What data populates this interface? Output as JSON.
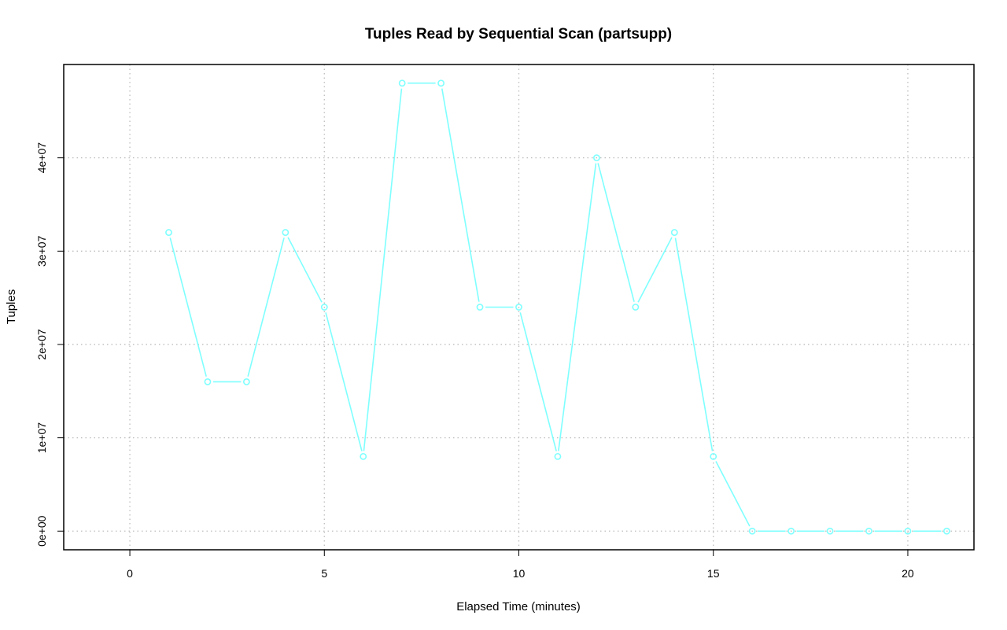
{
  "chart_data": {
    "type": "line",
    "title": "Tuples Read by Sequential Scan (partsupp)",
    "xlabel": "Elapsed Time (minutes)",
    "ylabel": "Tuples",
    "xlim": [
      -1.7,
      21.7
    ],
    "ylim": [
      -2000000,
      50000000
    ],
    "x_ticks": [
      0,
      5,
      10,
      15,
      20
    ],
    "x_tick_labels": [
      "0",
      "5",
      "10",
      "15",
      "20"
    ],
    "y_ticks": [
      0,
      10000000,
      20000000,
      30000000,
      40000000
    ],
    "y_tick_labels": [
      "0e+00",
      "1e+07",
      "2e+07",
      "3e+07",
      "4e+07"
    ],
    "grid": true,
    "series": [
      {
        "color": "#7fffff",
        "marker": "circle",
        "x": [
          1,
          2,
          3,
          4,
          5,
          6,
          7,
          8,
          9,
          10,
          11,
          12,
          13,
          14,
          15,
          16,
          17,
          18,
          19,
          20,
          21
        ],
        "y": [
          32000000,
          16000000,
          16000000,
          32000000,
          24000000,
          8000000,
          48000000,
          48000000,
          24000000,
          24000000,
          8000000,
          40000000,
          24000000,
          32000000,
          8000000,
          0,
          0,
          0,
          0,
          0,
          0
        ]
      }
    ]
  }
}
